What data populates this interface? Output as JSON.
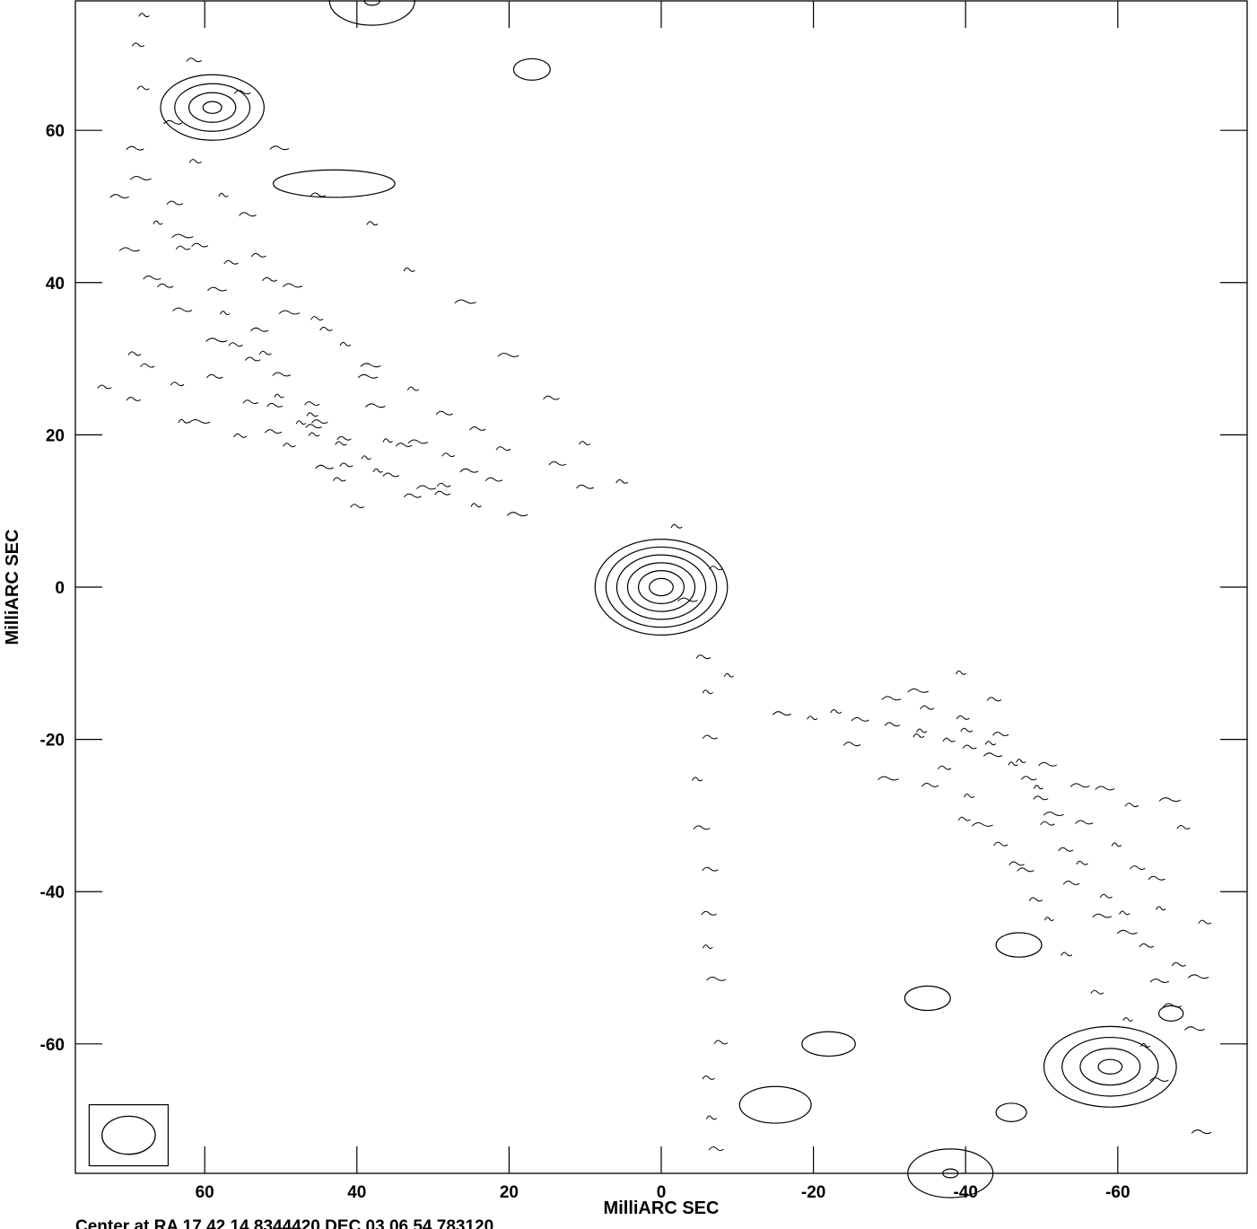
{
  "chart_data": {
    "type": "contour",
    "xlabel": "MilliARC SEC",
    "ylabel": "MilliARC SEC",
    "footer": "Center at RA 17 42 14.8344420  DEC 03 06 54.783120",
    "xlim": [
      77,
      -77
    ],
    "ylim": [
      -77,
      77
    ],
    "x_ticks": [
      60,
      40,
      20,
      0,
      -20,
      -40,
      -60
    ],
    "y_ticks": [
      60,
      40,
      20,
      0,
      -20,
      -40,
      -60
    ],
    "x_tick_labels": [
      "60",
      "40",
      "20",
      "0",
      "-20",
      "-40",
      "-60"
    ],
    "y_tick_labels": [
      "60",
      "40",
      "20",
      "0",
      "-20",
      "-40",
      "-60"
    ],
    "grid": false,
    "features": [
      {
        "kind": "source",
        "x": 0,
        "y": 0,
        "levels": 6,
        "rx": 8.7,
        "ry": 6.3
      },
      {
        "kind": "sidelobe",
        "x": 59,
        "y": 63,
        "levels": 4,
        "rx": 6.8,
        "ry": 4.3
      },
      {
        "kind": "sidelobe",
        "x": -59,
        "y": -63,
        "levels": 4,
        "rx": 8.7,
        "ry": 5.3
      },
      {
        "kind": "sidelobe",
        "x": 38,
        "y": 77,
        "levels": 2,
        "rx": 5.6,
        "ry": 3.2
      },
      {
        "kind": "sidelobe",
        "x": -38,
        "y": -77,
        "levels": 2,
        "rx": 5.6,
        "ry": 3.2
      },
      {
        "kind": "sidelobe",
        "x": 17,
        "y": 68,
        "levels": 1,
        "rx": 2.4,
        "ry": 1.4
      },
      {
        "kind": "sidelobe",
        "x": -46,
        "y": -69,
        "levels": 1,
        "rx": 2.0,
        "ry": 1.2
      },
      {
        "kind": "sidelobe",
        "x": -67,
        "y": -56,
        "levels": 1,
        "rx": 1.6,
        "ry": 1.0
      },
      {
        "kind": "sidelobe",
        "x": 43,
        "y": 53,
        "levels": 1,
        "rx": 8.0,
        "ry": 1.8
      },
      {
        "kind": "sidelobe",
        "x": -22,
        "y": -60,
        "levels": 1,
        "rx": 3.5,
        "ry": 1.6
      },
      {
        "kind": "sidelobe",
        "x": -15,
        "y": -68,
        "levels": 1,
        "rx": 4.7,
        "ry": 2.4
      },
      {
        "kind": "sidelobe",
        "x": -35,
        "y": -54,
        "levels": 1,
        "rx": 3.0,
        "ry": 1.6
      },
      {
        "kind": "sidelobe",
        "x": -47,
        "y": -47,
        "levels": 1,
        "rx": 3.0,
        "ry": 1.6
      }
    ],
    "beam": {
      "x": 70,
      "y": -72,
      "rx": 3.5,
      "ry": 2.5
    }
  }
}
